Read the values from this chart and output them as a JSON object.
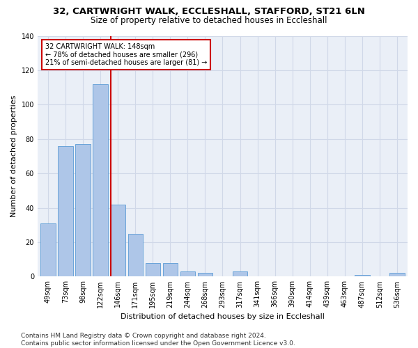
{
  "title1": "32, CARTWRIGHT WALK, ECCLESHALL, STAFFORD, ST21 6LN",
  "title2": "Size of property relative to detached houses in Eccleshall",
  "xlabel": "Distribution of detached houses by size in Eccleshall",
  "ylabel": "Number of detached properties",
  "categories": [
    "49sqm",
    "73sqm",
    "98sqm",
    "122sqm",
    "146sqm",
    "171sqm",
    "195sqm",
    "219sqm",
    "244sqm",
    "268sqm",
    "293sqm",
    "317sqm",
    "341sqm",
    "366sqm",
    "390sqm",
    "414sqm",
    "439sqm",
    "463sqm",
    "487sqm",
    "512sqm",
    "536sqm"
  ],
  "values": [
    31,
    76,
    77,
    112,
    42,
    25,
    8,
    8,
    3,
    2,
    0,
    3,
    0,
    0,
    0,
    0,
    0,
    0,
    1,
    0,
    2
  ],
  "bar_color": "#aec6e8",
  "bar_edge_color": "#5b9bd5",
  "vline_color": "#cc0000",
  "annotation_text": "32 CARTWRIGHT WALK: 148sqm\n← 78% of detached houses are smaller (296)\n21% of semi-detached houses are larger (81) →",
  "annotation_box_color": "#cc0000",
  "ylim": [
    0,
    140
  ],
  "yticks": [
    0,
    20,
    40,
    60,
    80,
    100,
    120,
    140
  ],
  "grid_color": "#d0d8e8",
  "background_color": "#eaeff7",
  "footer_text": "Contains HM Land Registry data © Crown copyright and database right 2024.\nContains public sector information licensed under the Open Government Licence v3.0.",
  "title1_fontsize": 9.5,
  "title2_fontsize": 8.5,
  "xlabel_fontsize": 8,
  "ylabel_fontsize": 8,
  "tick_fontsize": 7,
  "footer_fontsize": 6.5,
  "annotation_fontsize": 7
}
